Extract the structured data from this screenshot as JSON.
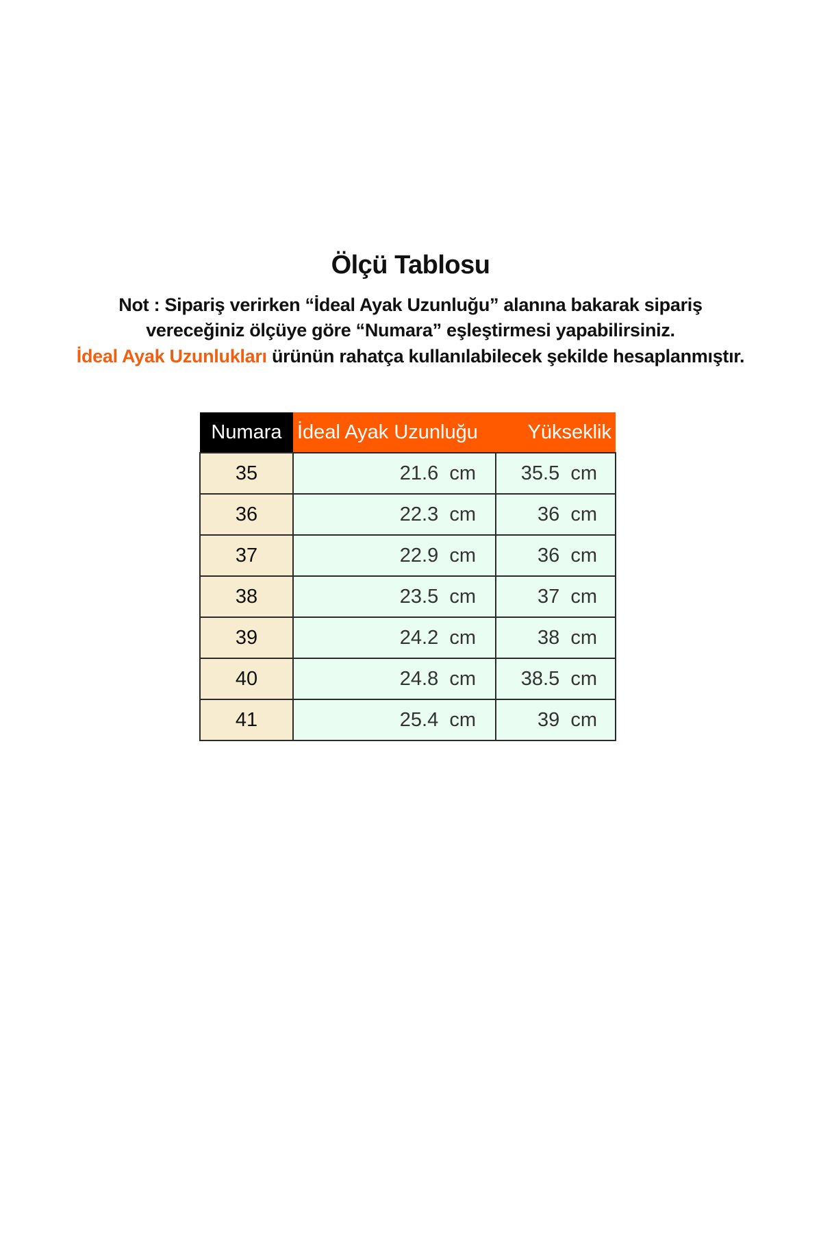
{
  "title": "Ölçü Tablosu",
  "note": {
    "line1": "Not : Sipariş verirken “İdeal Ayak Uzunluğu” alanına bakarak sipariş",
    "line2": "vereceğiniz ölçüye göre “Numara” eşleştirmesi yapabilirsiniz.",
    "line3_highlight": "İdeal Ayak Uzunlukları",
    "line3_rest": " ürünün rahatça kullanılabilecek şekilde hesaplanmıştır."
  },
  "colors": {
    "accent": "#ff5a00",
    "header_dark": "#000000",
    "size_cell": "#f7ecd0",
    "value_cell": "#eafdf2"
  },
  "table": {
    "headers": [
      "Numara",
      "İdeal Ayak Uzunluğu",
      "Yükseklik"
    ],
    "rows": [
      [
        "35",
        "21.6  cm",
        "35.5  cm"
      ],
      [
        "36",
        "22.3  cm",
        "36  cm"
      ],
      [
        "37",
        "22.9  cm",
        "36  cm"
      ],
      [
        "38",
        "23.5  cm",
        "37  cm"
      ],
      [
        "39",
        "24.2  cm",
        "38  cm"
      ],
      [
        "40",
        "24.8  cm",
        "38.5  cm"
      ],
      [
        "41",
        "25.4  cm",
        "39  cm"
      ]
    ]
  }
}
